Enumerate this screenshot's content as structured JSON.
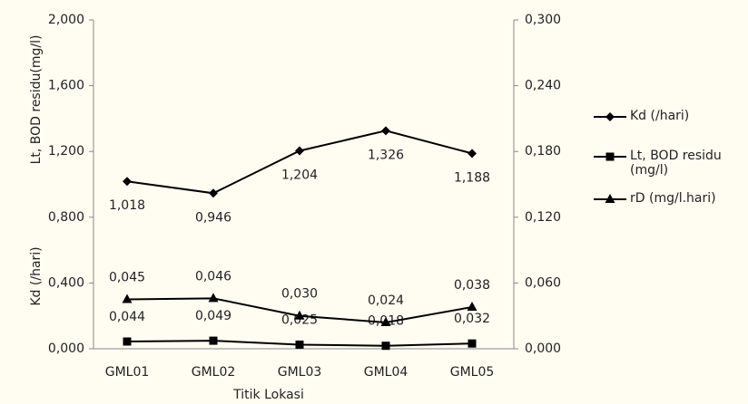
{
  "chart_data": {
    "type": "line",
    "x_label": "Titik Lokasi",
    "y_label": "Lt, BOD residu(mg/l)",
    "y_label_2": "Kd (/hari)",
    "categories": [
      "GML01",
      "GML02",
      "GML03",
      "GML04",
      "GML05"
    ],
    "ylim": [
      0,
      2
    ],
    "yticks": [
      {
        "value": 0,
        "label": "0,000"
      },
      {
        "value": 0.4,
        "label": "0,400"
      },
      {
        "value": 0.8,
        "label": "0,800"
      },
      {
        "value": 1.2,
        "label": "1,200"
      },
      {
        "value": 1.6,
        "label": "1,600"
      },
      {
        "value": 2,
        "label": "2,000"
      }
    ],
    "y2lim": [
      0,
      0.3
    ],
    "y2ticks": [
      {
        "value": 0,
        "label": "0,000"
      },
      {
        "value": 0.06,
        "label": "0,060"
      },
      {
        "value": 0.12,
        "label": "0,120"
      },
      {
        "value": 0.18,
        "label": "0,180"
      },
      {
        "value": 0.24,
        "label": "0,240"
      },
      {
        "value": 0.3,
        "label": "0,300"
      }
    ],
    "series": [
      {
        "name": "Kd (/hari)",
        "color": "#000000",
        "marker": "diamond",
        "values": [
          1.018,
          0.946,
          1.204,
          1.326,
          1.188
        ],
        "value_labels": [
          "1,018",
          "0,946",
          "1,204",
          "1,326",
          "1,188"
        ]
      },
      {
        "name": "Lt, BOD residu (mg/l)",
        "color": "#000000",
        "marker": "square",
        "values": [
          0.044,
          0.049,
          0.025,
          0.018,
          0.032
        ],
        "value_labels": [
          "0,044",
          "0,049",
          "0,025",
          "0,018",
          "0,032"
        ]
      },
      {
        "name": "rD (mg/l.hari)",
        "color": "#000000",
        "marker": "triangle",
        "axis": "y2",
        "values": [
          0.045,
          0.046,
          0.03,
          0.024,
          0.038
        ],
        "value_labels": [
          "0,045",
          "0,046",
          "0,030",
          "0,024",
          "0,038"
        ]
      }
    ]
  }
}
